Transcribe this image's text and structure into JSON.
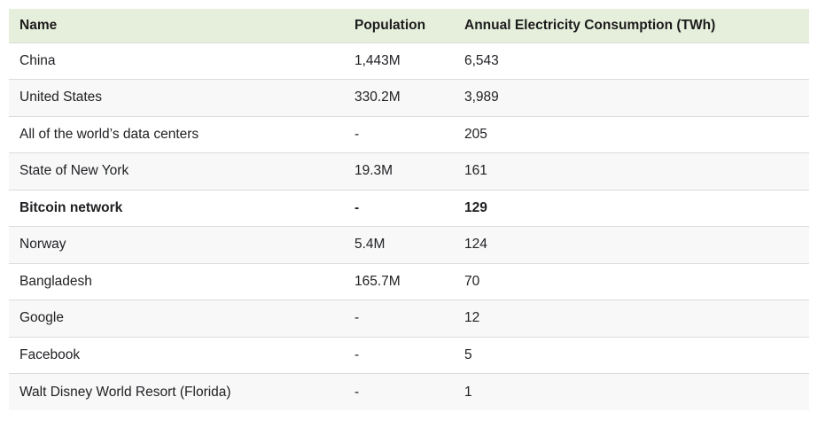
{
  "chart_data": {
    "type": "table",
    "columns": [
      "Name",
      "Population",
      "Annual Electricity Consumption (TWh)"
    ],
    "rows": [
      {
        "name": "China",
        "population": "1,443M",
        "consumption": "6,543",
        "bold": false
      },
      {
        "name": "United States",
        "population": "330.2M",
        "consumption": "3,989",
        "bold": false
      },
      {
        "name": "All of the world’s data centers",
        "population": "-",
        "consumption": "205",
        "bold": false
      },
      {
        "name": "State of New York",
        "population": "19.3M",
        "consumption": "161",
        "bold": false
      },
      {
        "name": "Bitcoin network",
        "population": "-",
        "consumption": "129",
        "bold": true
      },
      {
        "name": "Norway",
        "population": "5.4M",
        "consumption": "124",
        "bold": false
      },
      {
        "name": "Bangladesh",
        "population": "165.7M",
        "consumption": "70",
        "bold": false
      },
      {
        "name": "Google",
        "population": "-",
        "consumption": "12",
        "bold": false
      },
      {
        "name": "Facebook",
        "population": "-",
        "consumption": "5",
        "bold": false
      },
      {
        "name": "Walt Disney World Resort (Florida)",
        "population": "-",
        "consumption": "1",
        "bold": false
      }
    ]
  },
  "colors": {
    "header_bg": "#e6efdc",
    "row_bg": "#ffffff",
    "alt_row_bg": "#f8f8f8",
    "border": "#dcdcdc",
    "header_text": "#1c1c1c",
    "body_text": "#202124"
  }
}
